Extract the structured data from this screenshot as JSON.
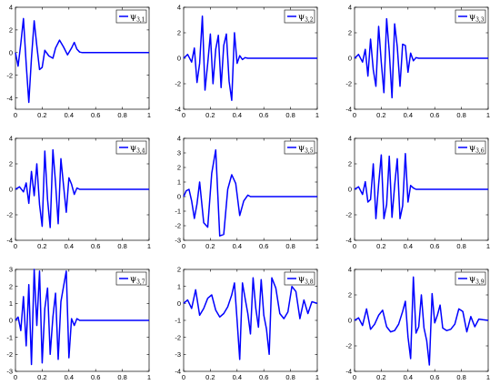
{
  "chart_data": [
    {
      "type": "line",
      "legend": {
        "symbol": "ψ",
        "sub": "3,1",
        "placement": "top-right"
      },
      "color": "#0000ff",
      "xlim": [
        0,
        1
      ],
      "ylim": [
        -5,
        4
      ],
      "xticks": [
        0,
        0.2,
        0.4,
        0.6,
        0.8,
        1
      ],
      "xtick_labels": [
        "0",
        "0.2",
        "0.4",
        "0.6",
        "0.8",
        "1"
      ],
      "yticks": [
        -4,
        -2,
        0,
        2,
        4
      ],
      "ytick_labels": [
        "-4",
        "-2",
        "0",
        "2",
        "4"
      ],
      "series": [
        {
          "x": [
            0,
            0.02,
            0.04,
            0.06,
            0.08,
            0.1,
            0.12,
            0.14,
            0.16,
            0.18,
            0.2,
            0.22,
            0.25,
            0.28,
            0.3,
            0.33,
            0.36,
            0.39,
            0.42,
            0.44,
            0.46,
            0.48,
            0.5,
            0.55,
            0.6,
            0.7,
            0.8,
            0.9,
            1
          ],
          "y": [
            0,
            -1.2,
            0.8,
            3.0,
            -1.0,
            -4.4,
            -0.5,
            2.8,
            0.6,
            -1.5,
            -1.3,
            0.2,
            -0.3,
            -0.5,
            0.4,
            1.1,
            0.5,
            -0.2,
            0.4,
            0.9,
            0.3,
            0.05,
            0,
            0,
            0,
            0,
            0,
            0,
            0
          ]
        }
      ]
    },
    {
      "type": "line",
      "legend": {
        "symbol": "ψ",
        "sub": "3,2",
        "placement": "top-right"
      },
      "color": "#0000ff",
      "xlim": [
        0,
        1
      ],
      "ylim": [
        -4,
        4
      ],
      "xticks": [
        0,
        0.2,
        0.4,
        0.6,
        0.8,
        1
      ],
      "xtick_labels": [
        "0",
        "0.2",
        "0.4",
        "0.6",
        "0.8",
        "1"
      ],
      "yticks": [
        -4,
        -2,
        0,
        2,
        4
      ],
      "ytick_labels": [
        "-4",
        "-2",
        "0",
        "2",
        "4"
      ],
      "series": [
        {
          "x": [
            0,
            0.03,
            0.06,
            0.08,
            0.1,
            0.12,
            0.14,
            0.16,
            0.18,
            0.2,
            0.22,
            0.24,
            0.26,
            0.28,
            0.3,
            0.32,
            0.34,
            0.36,
            0.38,
            0.4,
            0.42,
            0.44,
            0.46,
            0.48,
            0.5,
            0.6,
            0.7,
            0.8,
            0.9,
            1
          ],
          "y": [
            0,
            0.3,
            -0.3,
            0.8,
            -1.9,
            -0.4,
            3.3,
            -2.5,
            -0.4,
            1.9,
            -2.0,
            0.7,
            1.8,
            -2.3,
            1.0,
            1.9,
            -1.8,
            -3.3,
            2.0,
            -0.4,
            0.2,
            -0.1,
            0.05,
            0,
            0,
            0,
            0,
            0,
            0,
            0
          ]
        }
      ]
    },
    {
      "type": "line",
      "legend": {
        "symbol": "ψ",
        "sub": "3,3",
        "placement": "top-right"
      },
      "color": "#0000ff",
      "xlim": [
        0,
        1
      ],
      "ylim": [
        -4,
        4
      ],
      "xticks": [
        0,
        0.2,
        0.4,
        0.6,
        0.8,
        1
      ],
      "xtick_labels": [
        "0",
        "0.2",
        "0.4",
        "0.6",
        "0.8",
        "1"
      ],
      "yticks": [
        -4,
        -2,
        0,
        2,
        4
      ],
      "ytick_labels": [
        "-4",
        "-2",
        "0",
        "2",
        "4"
      ],
      "series": [
        {
          "x": [
            0,
            0.03,
            0.06,
            0.08,
            0.1,
            0.12,
            0.14,
            0.16,
            0.18,
            0.2,
            0.22,
            0.24,
            0.26,
            0.28,
            0.3,
            0.32,
            0.34,
            0.36,
            0.38,
            0.4,
            0.42,
            0.44,
            0.46,
            0.48,
            0.5,
            0.6,
            0.7,
            0.8,
            0.9,
            1
          ],
          "y": [
            0,
            0.3,
            -0.3,
            0.7,
            -1.4,
            1.5,
            -0.9,
            -2.2,
            2.5,
            -0.3,
            -2.7,
            3.1,
            0.5,
            -3.1,
            2.7,
            0.9,
            -2.2,
            1.1,
            1.0,
            -1.1,
            0.4,
            -0.2,
            0.05,
            0,
            0,
            0,
            0,
            0,
            0,
            0
          ]
        }
      ]
    },
    {
      "type": "line",
      "legend": {
        "symbol": "ψ",
        "sub": "3,4",
        "placement": "top-right"
      },
      "color": "#0000ff",
      "xlim": [
        0,
        1
      ],
      "ylim": [
        -4,
        4
      ],
      "xticks": [
        0,
        0.2,
        0.4,
        0.6,
        0.8,
        1
      ],
      "xtick_labels": [
        "0",
        "0.2",
        "0.4",
        "0.6",
        "0.8",
        "1"
      ],
      "yticks": [
        -4,
        -2,
        0,
        2,
        4
      ],
      "ytick_labels": [
        "-4",
        "-2",
        "0",
        "2",
        "4"
      ],
      "series": [
        {
          "x": [
            0,
            0.03,
            0.06,
            0.08,
            0.1,
            0.12,
            0.14,
            0.16,
            0.18,
            0.2,
            0.22,
            0.24,
            0.26,
            0.28,
            0.3,
            0.32,
            0.34,
            0.36,
            0.38,
            0.4,
            0.42,
            0.44,
            0.46,
            0.48,
            0.5,
            0.6,
            0.7,
            0.8,
            0.9,
            1
          ],
          "y": [
            0,
            0.2,
            -0.2,
            0.5,
            -1.1,
            1.4,
            -0.5,
            2.0,
            -1.2,
            -2.9,
            3.0,
            -0.8,
            -3.0,
            3.1,
            0.5,
            -2.7,
            2.4,
            0.3,
            -1.8,
            0.9,
            0.4,
            -0.4,
            0.1,
            0,
            0,
            0,
            0,
            0,
            0,
            0
          ]
        }
      ]
    },
    {
      "type": "line",
      "legend": {
        "symbol": "ψ",
        "sub": "3,5",
        "placement": "top-right"
      },
      "color": "#0000ff",
      "xlim": [
        0,
        1
      ],
      "ylim": [
        -3,
        4
      ],
      "xticks": [
        0,
        0.2,
        0.4,
        0.6,
        0.8,
        1
      ],
      "xtick_labels": [
        "0",
        "0.2",
        "0.4",
        "0.6",
        "0.8",
        "1"
      ],
      "yticks": [
        -3,
        -2,
        -1,
        0,
        1,
        2,
        3,
        4
      ],
      "ytick_labels": [
        "-3",
        "-2",
        "-1",
        "0",
        "1",
        "2",
        "3",
        "4"
      ],
      "series": [
        {
          "x": [
            0,
            0.02,
            0.04,
            0.06,
            0.08,
            0.1,
            0.12,
            0.15,
            0.18,
            0.21,
            0.24,
            0.27,
            0.3,
            0.33,
            0.36,
            0.39,
            0.42,
            0.45,
            0.48,
            0.5,
            0.6,
            0.7,
            0.8,
            0.9,
            1
          ],
          "y": [
            0,
            0.4,
            0.5,
            -0.3,
            -1.5,
            -0.5,
            1.0,
            -1.8,
            -2.1,
            1.6,
            3.2,
            -2.7,
            -2.6,
            0.5,
            1.5,
            0.9,
            -1.3,
            -0.3,
            0.1,
            0,
            0,
            0,
            0,
            0,
            0
          ]
        }
      ]
    },
    {
      "type": "line",
      "legend": {
        "symbol": "ψ",
        "sub": "3,6",
        "placement": "top-right"
      },
      "color": "#0000ff",
      "xlim": [
        0,
        1
      ],
      "ylim": [
        -4,
        4
      ],
      "xticks": [
        0,
        0.2,
        0.4,
        0.6,
        0.8,
        1
      ],
      "xtick_labels": [
        "0",
        "0.2",
        "0.4",
        "0.6",
        "0.8",
        "1"
      ],
      "yticks": [
        -4,
        -2,
        0,
        2,
        4
      ],
      "ytick_labels": [
        "-4",
        "-2",
        "0",
        "2",
        "4"
      ],
      "series": [
        {
          "x": [
            0,
            0.03,
            0.06,
            0.08,
            0.1,
            0.12,
            0.14,
            0.16,
            0.18,
            0.2,
            0.22,
            0.24,
            0.26,
            0.28,
            0.3,
            0.32,
            0.34,
            0.36,
            0.38,
            0.4,
            0.42,
            0.44,
            0.46,
            0.48,
            0.5,
            0.6,
            0.7,
            0.8,
            0.9,
            1
          ],
          "y": [
            0,
            0.2,
            -0.4,
            0.6,
            -1.0,
            -0.8,
            2.0,
            -2.3,
            0.4,
            2.7,
            -2.3,
            -1.2,
            2.6,
            -2.2,
            0.3,
            2.4,
            -2.3,
            -1.3,
            2.8,
            -1.0,
            0.3,
            0.1,
            0,
            0,
            0,
            0,
            0,
            0,
            0,
            0
          ]
        }
      ]
    },
    {
      "type": "line",
      "legend": {
        "symbol": "ψ",
        "sub": "3,7",
        "placement": "top-right"
      },
      "color": "#0000ff",
      "xlim": [
        0,
        1
      ],
      "ylim": [
        -3,
        3
      ],
      "xticks": [
        0,
        0.2,
        0.4,
        0.6,
        0.8,
        1
      ],
      "xtick_labels": [
        "0",
        "0.2",
        "0.4",
        "0.6",
        "0.8",
        "1"
      ],
      "yticks": [
        -3,
        -2,
        -1,
        0,
        1,
        2,
        3
      ],
      "ytick_labels": [
        "-3",
        "-2",
        "-1",
        "0",
        "1",
        "2",
        "3"
      ],
      "series": [
        {
          "x": [
            0,
            0.02,
            0.04,
            0.06,
            0.08,
            0.1,
            0.12,
            0.14,
            0.16,
            0.18,
            0.2,
            0.22,
            0.24,
            0.26,
            0.28,
            0.3,
            0.32,
            0.34,
            0.36,
            0.38,
            0.4,
            0.42,
            0.44,
            0.46,
            0.48,
            0.5,
            0.6,
            0.7,
            0.8,
            0.9,
            1
          ],
          "y": [
            0,
            0.2,
            -0.6,
            1.4,
            -1.5,
            2.1,
            -2.6,
            3.0,
            -0.3,
            2.9,
            -2.5,
            0.7,
            1.9,
            -2.0,
            0.2,
            1.6,
            -2.3,
            1.1,
            2.0,
            2.9,
            -2.2,
            0.1,
            -0.3,
            0.1,
            0,
            0,
            0,
            0,
            0,
            0,
            0
          ]
        }
      ]
    },
    {
      "type": "line",
      "legend": {
        "symbol": "ψ",
        "sub": "3,8",
        "placement": "top-right"
      },
      "color": "#0000ff",
      "xlim": [
        0,
        1
      ],
      "ylim": [
        -4,
        2
      ],
      "xticks": [
        0,
        0.2,
        0.4,
        0.6,
        0.8,
        1
      ],
      "xtick_labels": [
        "0",
        "0.2",
        "0.4",
        "0.6",
        "0.8",
        "1"
      ],
      "yticks": [
        -4,
        -3,
        -2,
        -1,
        0,
        1,
        2
      ],
      "ytick_labels": [
        "-4",
        "-3",
        "-2",
        "-1",
        "0",
        "1",
        "2"
      ],
      "series": [
        {
          "x": [
            0,
            0.03,
            0.06,
            0.09,
            0.12,
            0.15,
            0.18,
            0.21,
            0.24,
            0.27,
            0.3,
            0.33,
            0.36,
            0.38,
            0.4,
            0.42,
            0.44,
            0.46,
            0.48,
            0.5,
            0.52,
            0.54,
            0.56,
            0.58,
            0.6,
            0.62,
            0.64,
            0.66,
            0.69,
            0.72,
            0.75,
            0.78,
            0.81,
            0.84,
            0.87,
            0.9,
            0.93,
            0.96,
            1
          ],
          "y": [
            0,
            0.2,
            -0.3,
            0.8,
            -0.7,
            -0.3,
            0.3,
            0.5,
            -0.4,
            -0.8,
            -0.6,
            -0.2,
            0.5,
            1.2,
            -1.0,
            -3.3,
            1.2,
            0.3,
            -0.6,
            -1.8,
            1.5,
            -0.3,
            -1.4,
            1.4,
            -0.7,
            -1.5,
            -3.0,
            1.5,
            0.9,
            -0.6,
            -0.9,
            -0.5,
            1.0,
            0.7,
            -0.9,
            0.2,
            -0.6,
            0.1,
            0
          ]
        }
      ]
    },
    {
      "type": "line",
      "legend": {
        "symbol": "ψ",
        "sub": "3,9",
        "placement": "top-right"
      },
      "color": "#0000ff",
      "xlim": [
        0,
        1
      ],
      "ylim": [
        -4,
        4
      ],
      "xticks": [
        0,
        0.2,
        0.4,
        0.6,
        0.8,
        1
      ],
      "xtick_labels": [
        "0",
        "0.2",
        "0.4",
        "0.6",
        "0.8",
        "1"
      ],
      "yticks": [
        -4,
        -2,
        0,
        2,
        4
      ],
      "ytick_labels": [
        "-4",
        "-2",
        "0",
        "2",
        "4"
      ],
      "series": [
        {
          "x": [
            0,
            0.03,
            0.06,
            0.09,
            0.12,
            0.15,
            0.18,
            0.21,
            0.24,
            0.27,
            0.3,
            0.33,
            0.36,
            0.38,
            0.4,
            0.42,
            0.44,
            0.46,
            0.48,
            0.5,
            0.52,
            0.54,
            0.56,
            0.58,
            0.6,
            0.62,
            0.64,
            0.66,
            0.69,
            0.72,
            0.75,
            0.78,
            0.81,
            0.84,
            0.87,
            0.9,
            0.93,
            0.96,
            1
          ],
          "y": [
            0,
            0.2,
            -0.4,
            0.9,
            -0.7,
            -0.3,
            0.4,
            0.8,
            -0.5,
            -0.9,
            -0.8,
            -0.3,
            0.7,
            1.5,
            -1.3,
            -3.0,
            3.4,
            -1.0,
            -0.5,
            2.0,
            -0.6,
            -1.6,
            -3.5,
            2.1,
            -0.2,
            0.4,
            1.2,
            -0.6,
            -0.8,
            -0.7,
            -0.3,
            0.9,
            0.7,
            -0.9,
            0.3,
            -0.5,
            0.1,
            0.05,
            0
          ]
        }
      ]
    }
  ]
}
